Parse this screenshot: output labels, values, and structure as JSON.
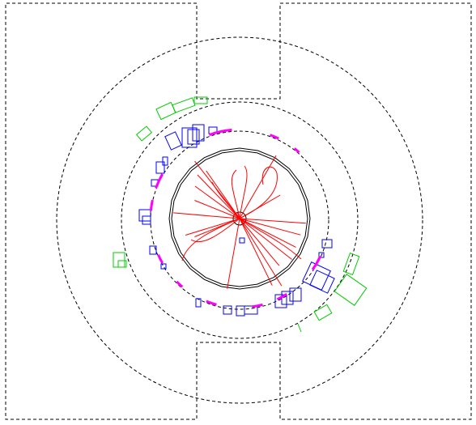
{
  "view": {
    "type": "event-display-end-view",
    "background": "#ffffff",
    "colors": {
      "outline": "#000000",
      "tracks": "#ff0000",
      "inner_hits": "#0000ff",
      "outer_hits": "#00cc00",
      "segments": "#ff00ff"
    }
  },
  "tracks": [
    {
      "angle": 250,
      "length": 8
    },
    {
      "angle": 235,
      "length": 72
    },
    {
      "angle": 232,
      "length": 90
    },
    {
      "angle": 226,
      "length": 75
    },
    {
      "angle": 216,
      "length": 68
    },
    {
      "angle": 202,
      "length": 60
    },
    {
      "angle": 185,
      "length": 82
    },
    {
      "angle": 163,
      "length": 70
    },
    {
      "angle": 158,
      "length": 60
    },
    {
      "angle": 100,
      "length": 88
    },
    {
      "angle": 64,
      "length": 92
    },
    {
      "angle": 58,
      "length": 98
    },
    {
      "angle": 50,
      "length": 76
    },
    {
      "angle": 38,
      "length": 82
    },
    {
      "angle": 27,
      "length": 78
    },
    {
      "angle": 15,
      "length": 78
    },
    {
      "angle": 4,
      "length": 82
    },
    {
      "angle": 330,
      "length": 58
    },
    {
      "angle": 300,
      "length": 90
    }
  ]
}
